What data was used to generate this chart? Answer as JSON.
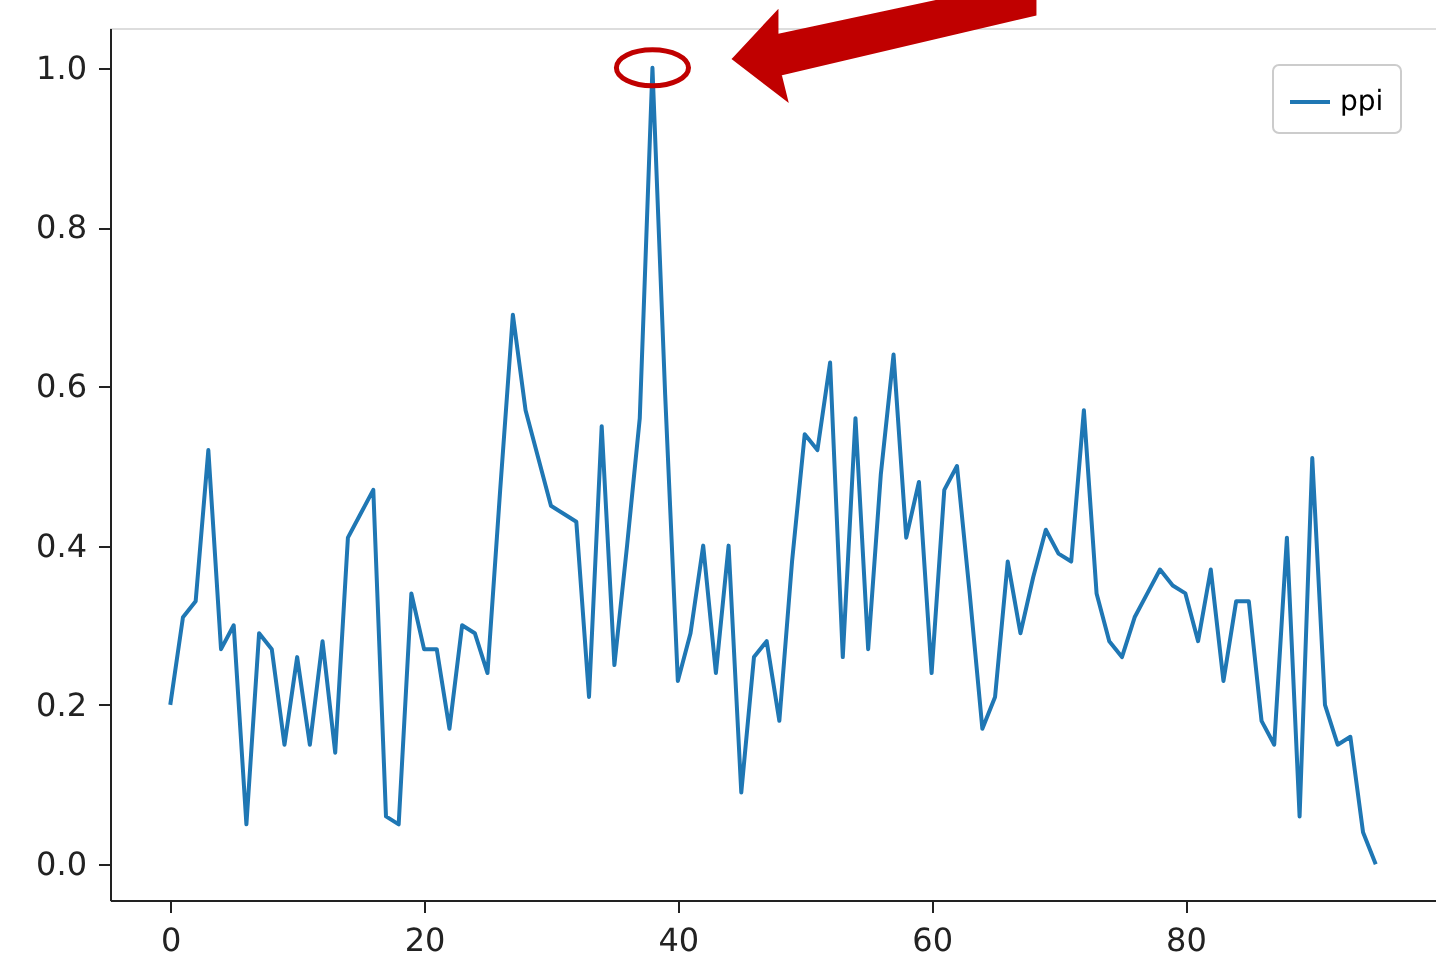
{
  "chart_data": {
    "type": "line",
    "x": [
      0,
      1,
      2,
      3,
      4,
      5,
      6,
      7,
      8,
      9,
      10,
      11,
      12,
      13,
      14,
      15,
      16,
      17,
      18,
      19,
      20,
      21,
      22,
      23,
      24,
      25,
      26,
      27,
      28,
      29,
      30,
      31,
      32,
      33,
      34,
      35,
      36,
      37,
      38,
      39,
      40,
      41,
      42,
      43,
      44,
      45,
      46,
      47,
      48,
      49,
      50,
      51,
      52,
      53,
      54,
      55,
      56,
      57,
      58,
      59,
      60,
      61,
      62,
      63,
      64,
      65,
      66,
      67,
      68,
      69,
      70,
      71,
      72,
      73,
      74,
      75,
      76,
      77,
      78,
      79,
      80,
      81,
      82,
      83,
      84,
      85,
      86,
      87,
      88,
      89,
      90,
      91,
      92,
      93,
      94,
      95
    ],
    "series": [
      {
        "name": "ppi",
        "color": "#1f77b4",
        "values": [
          0.2,
          0.31,
          0.33,
          0.52,
          0.27,
          0.3,
          0.05,
          0.29,
          0.27,
          0.15,
          0.26,
          0.15,
          0.28,
          0.14,
          0.41,
          0.44,
          0.47,
          0.06,
          0.05,
          0.34,
          0.27,
          0.27,
          0.17,
          0.3,
          0.29,
          0.24,
          0.47,
          0.69,
          0.57,
          0.51,
          0.45,
          0.44,
          0.43,
          0.21,
          0.55,
          0.25,
          0.4,
          0.56,
          1.0,
          0.59,
          0.23,
          0.29,
          0.4,
          0.24,
          0.4,
          0.09,
          0.26,
          0.28,
          0.18,
          0.38,
          0.54,
          0.52,
          0.63,
          0.26,
          0.56,
          0.27,
          0.49,
          0.64,
          0.41,
          0.48,
          0.24,
          0.47,
          0.5,
          0.34,
          0.17,
          0.21,
          0.38,
          0.29,
          0.36,
          0.42,
          0.39,
          0.38,
          0.57,
          0.34,
          0.28,
          0.26,
          0.31,
          0.34,
          0.37,
          0.35,
          0.34,
          0.28,
          0.37,
          0.23,
          0.33,
          0.33,
          0.18,
          0.15,
          0.41,
          0.06,
          0.51,
          0.2,
          0.15,
          0.16,
          0.04,
          0.0
        ]
      }
    ],
    "xlim": [
      -4.75,
      99.75
    ],
    "xticks": [
      0,
      20,
      40,
      60,
      80
    ],
    "ylim": [
      -0.045,
      1.05
    ],
    "yticks": [
      {
        "value": 0,
        "label": "0.0"
      },
      0.2,
      0.4,
      0.6,
      0.8,
      {
        "value": 1,
        "label": "1.0"
      }
    ],
    "legend": "top right",
    "grid": false,
    "marker": "none",
    "line_style": "solid"
  }
}
